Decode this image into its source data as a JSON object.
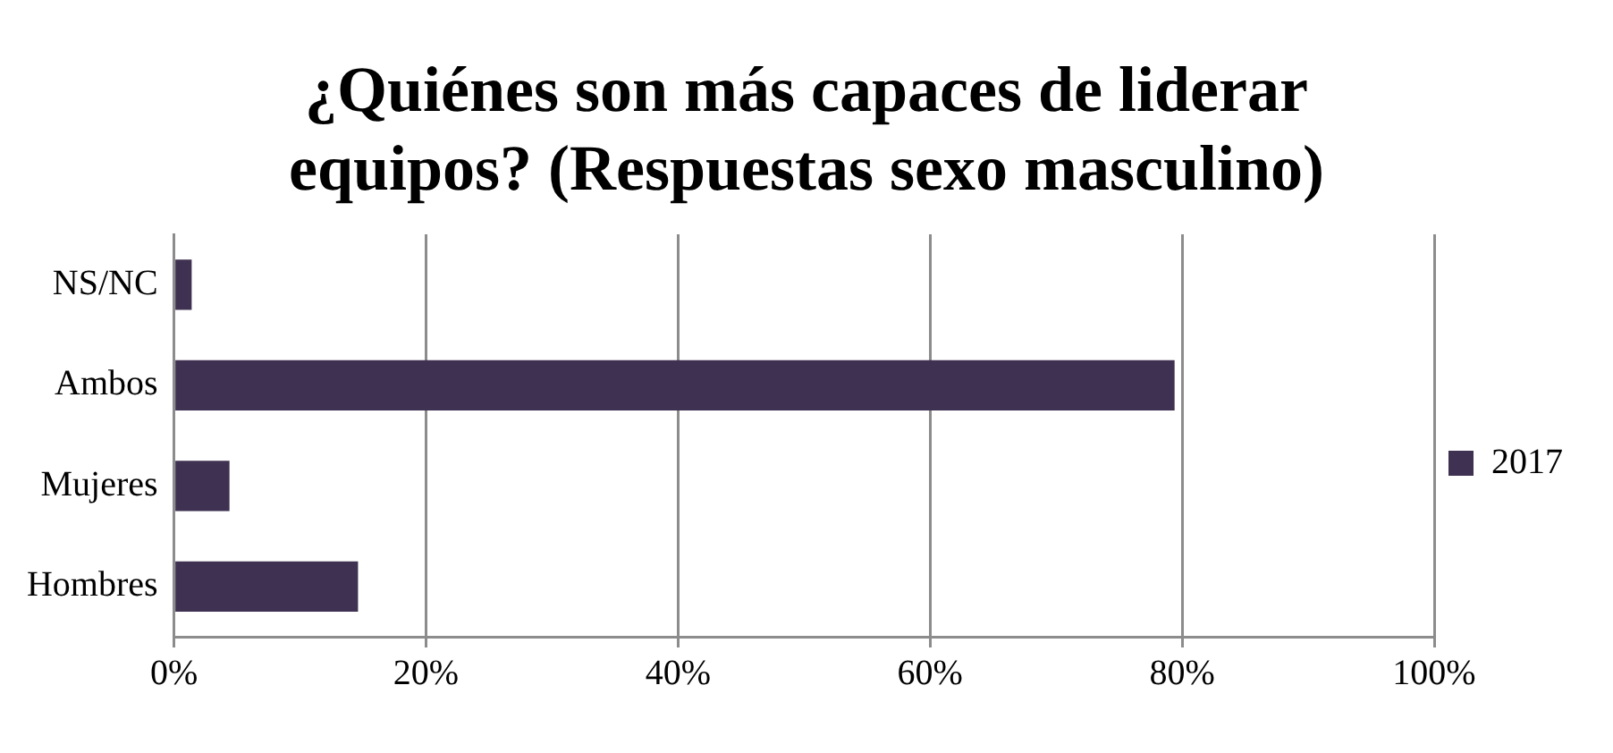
{
  "chart_data": {
    "type": "bar",
    "orientation": "horizontal",
    "title": "¿Quiénes son más capaces de liderar equipos? (Respuestas sexo masculino)",
    "categories": [
      "NS/NC",
      "Ambos",
      "Mujeres",
      "Hombres"
    ],
    "series": [
      {
        "name": "2017",
        "color": "#3f3151",
        "values": [
          1.4,
          79.4,
          4.4,
          14.6
        ]
      }
    ],
    "xlim": [
      0,
      100
    ],
    "xticks": [
      {
        "value": 0,
        "label": "0%"
      },
      {
        "value": 20,
        "label": "20%"
      },
      {
        "value": 40,
        "label": "40%"
      },
      {
        "value": 60,
        "label": "60%"
      },
      {
        "value": 80,
        "label": "80%"
      },
      {
        "value": 100,
        "label": "100%"
      }
    ],
    "grid": "x",
    "legend": "right"
  }
}
